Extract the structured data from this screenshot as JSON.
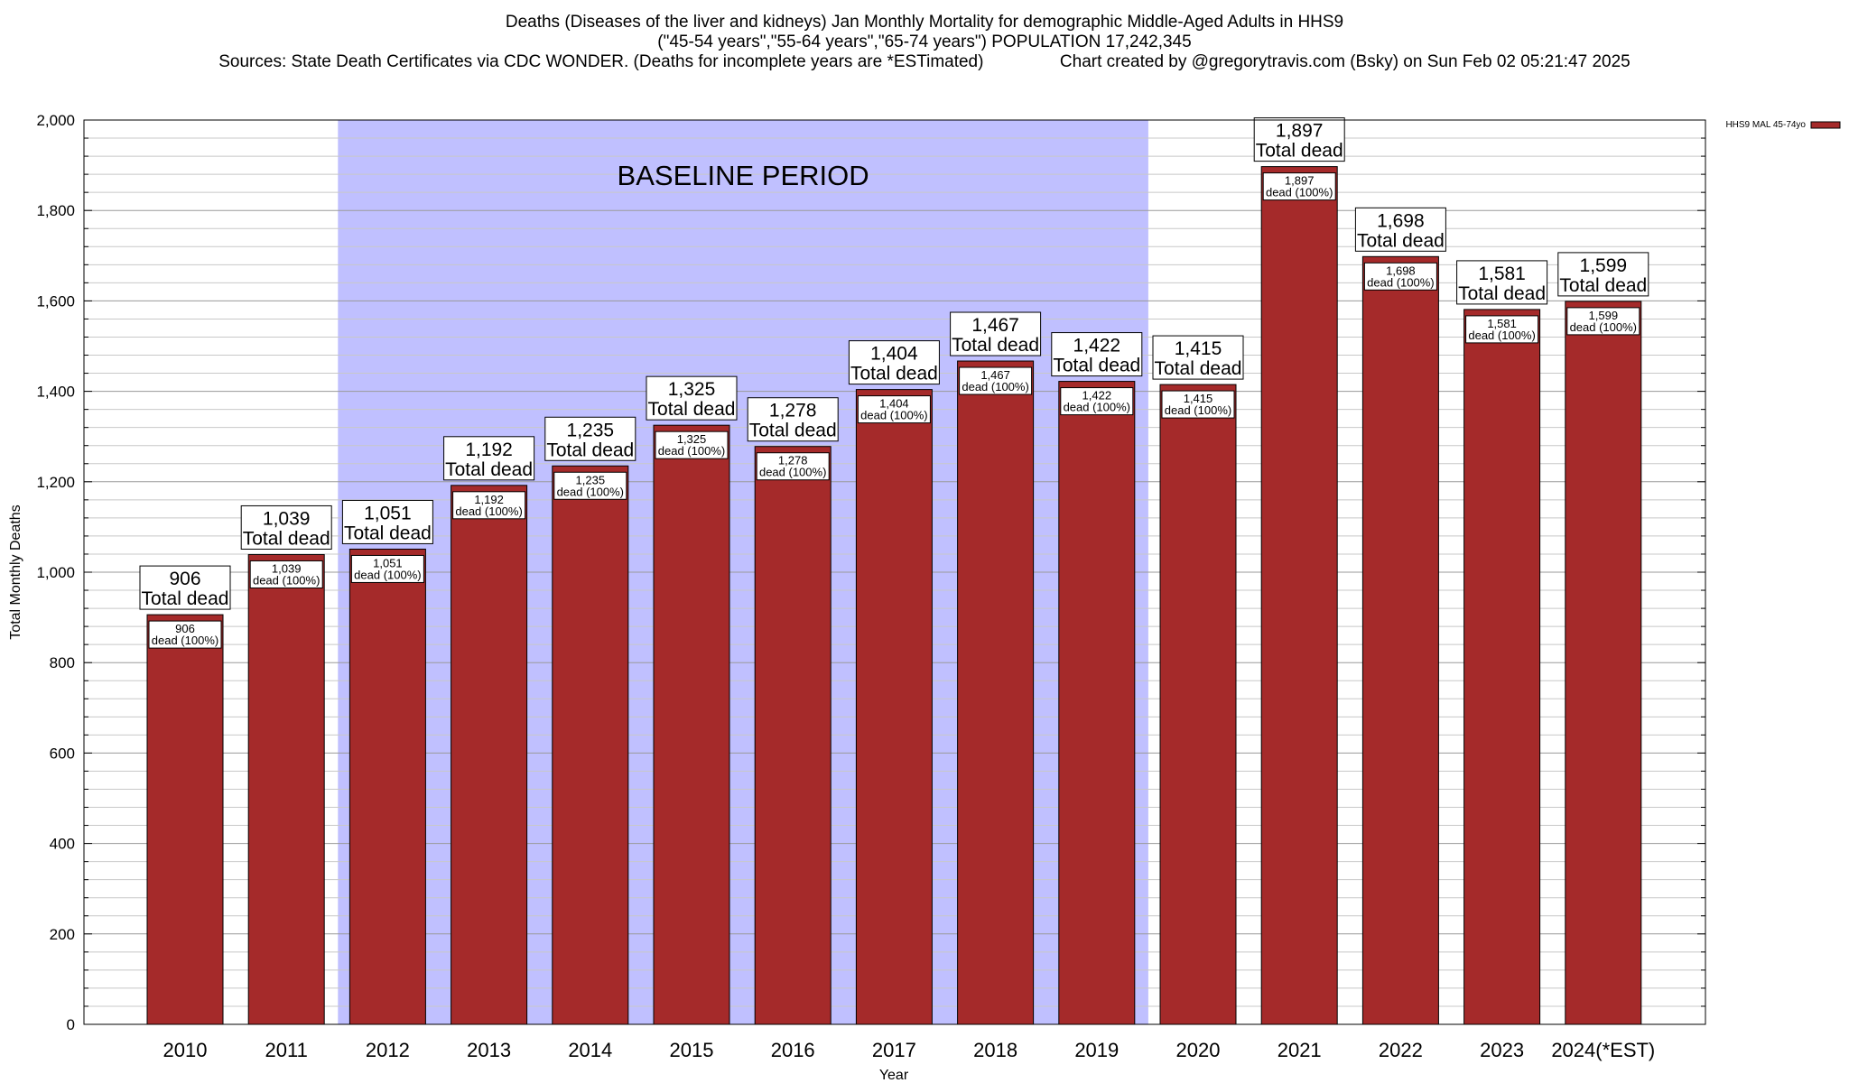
{
  "title_lines": [
    "Deaths (Diseases of the liver and kidneys) Jan Monthly Mortality for demographic Middle-Aged Adults in HHS9",
    "(\"45-54 years\",\"55-64 years\",\"65-74 years\") POPULATION 17,242,345",
    "Sources: State Death Certificates via CDC WONDER. (Deaths for incomplete years are *ESTimated)                Chart created by @gregorytravis.com (Bsky) on Sun Feb 02 05:21:47 2025"
  ],
  "chart_data": {
    "type": "bar",
    "title": "Deaths (Diseases of the liver and kidneys) Jan Monthly Mortality for demographic Middle-Aged Adults in HHS9",
    "xlabel": "Year",
    "ylabel": "Total Monthly Deaths",
    "ylim": [
      0,
      2000
    ],
    "yticks": [
      0,
      200,
      400,
      600,
      800,
      1000,
      1200,
      1400,
      1600,
      1800,
      2000
    ],
    "ytick_labels": [
      "0",
      "200",
      "400",
      "600",
      "800",
      "1,000",
      "1,200",
      "1,400",
      "1,600",
      "1,800",
      "2,000"
    ],
    "grid": true,
    "legend_position": "top-right",
    "bar_color": "#a52a2a",
    "shading_color": "#c0c0ff",
    "categories": [
      "2010",
      "2011",
      "2012",
      "2013",
      "2014",
      "2015",
      "2016",
      "2017",
      "2018",
      "2019",
      "2020",
      "2021",
      "2022",
      "2023",
      "2024(*EST)"
    ],
    "series": [
      {
        "name": "HHS9 MAL 45-74yo",
        "values": [
          906,
          1039,
          1051,
          1192,
          1235,
          1325,
          1278,
          1404,
          1467,
          1422,
          1415,
          1897,
          1698,
          1581,
          1599
        ]
      }
    ],
    "total_labels": [
      "906",
      "1,039",
      "1,051",
      "1,192",
      "1,235",
      "1,325",
      "1,278",
      "1,404",
      "1,467",
      "1,422",
      "1,415",
      "1,897",
      "1,698",
      "1,581",
      "1,599"
    ],
    "total_suffix": "Total dead",
    "inner_suffix": "dead (100%)",
    "shaded_region": {
      "label": "BASELINE PERIOD",
      "from_category": "2012",
      "to_category": "2019"
    }
  }
}
